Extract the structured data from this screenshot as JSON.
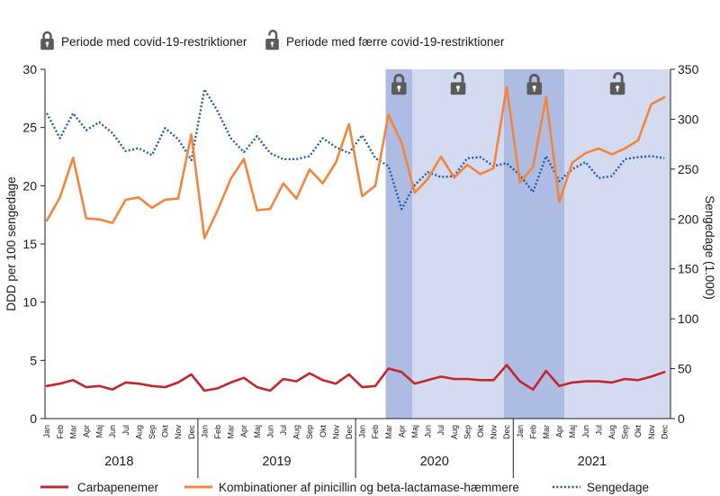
{
  "legend_top": {
    "restricted": {
      "icon": "closed-lock-icon",
      "label": "Periode med covid-19-restriktioner"
    },
    "reduced": {
      "icon": "open-lock-icon",
      "label": "Periode med færre covid-19-restriktioner"
    }
  },
  "colors": {
    "restricted_shade": "#aebbe3",
    "reduced_shade": "#d4dbf1",
    "lock_icon": "#5b5b5b",
    "axis": "#222222"
  },
  "chart_data": {
    "type": "line",
    "ylabel": "DDD per 100 sengedage",
    "ylabel_right": "Sengedage (1.000)",
    "ylim": [
      0,
      30
    ],
    "ylim_right": [
      0,
      350
    ],
    "y_ticks": [
      0,
      5,
      10,
      15,
      20,
      25,
      30
    ],
    "y_ticks_right": [
      0,
      50,
      100,
      150,
      200,
      250,
      300,
      350
    ],
    "years": [
      "2018",
      "2019",
      "2020",
      "2021"
    ],
    "months": [
      "Jan",
      "Feb",
      "Mar",
      "Apr",
      "Maj",
      "Jun",
      "Jul",
      "Aug",
      "Sep",
      "Okt",
      "Nov",
      "Dec"
    ],
    "grid": false,
    "legend": "bottom",
    "series": [
      {
        "name": "Carbapenemer",
        "axis": "left",
        "style": "solid",
        "color": "#c4262e",
        "values": [
          2.8,
          3.0,
          3.3,
          2.7,
          2.8,
          2.5,
          3.1,
          3.0,
          2.8,
          2.7,
          3.1,
          3.8,
          2.4,
          2.6,
          3.1,
          3.5,
          2.7,
          2.4,
          3.4,
          3.2,
          3.9,
          3.3,
          3.0,
          3.8,
          2.7,
          2.8,
          4.3,
          4.0,
          3.0,
          3.3,
          3.6,
          3.4,
          3.4,
          3.3,
          3.3,
          4.6,
          3.2,
          2.5,
          4.1,
          2.8,
          3.1,
          3.2,
          3.2,
          3.1,
          3.4,
          3.3,
          3.6,
          4.0
        ]
      },
      {
        "name": "Kombinationer af pinicillin og beta-lactamase-hæmmere",
        "axis": "left",
        "style": "solid",
        "color": "#f3853d",
        "values": [
          17.0,
          19.0,
          22.4,
          17.2,
          17.1,
          16.8,
          18.8,
          19.0,
          18.1,
          18.8,
          18.9,
          24.4,
          15.5,
          17.9,
          20.6,
          22.3,
          17.9,
          18.0,
          20.2,
          18.9,
          21.4,
          20.2,
          22.0,
          25.3,
          19.1,
          20.0,
          26.1,
          23.7,
          19.4,
          20.6,
          22.5,
          20.7,
          21.8,
          21.0,
          21.5,
          28.5,
          20.3,
          21.6,
          27.6,
          18.6,
          22.0,
          22.8,
          23.2,
          22.7,
          23.2,
          23.9,
          27.0,
          27.6
        ]
      },
      {
        "name": "Sengedage",
        "axis": "right",
        "style": "dotted",
        "color": "#1b5fab",
        "values": [
          306,
          281,
          306,
          289,
          297,
          286,
          268,
          271,
          264,
          291,
          280,
          259,
          330,
          308,
          281,
          267,
          283,
          266,
          260,
          260,
          263,
          281,
          272,
          266,
          284,
          261,
          253,
          210,
          234,
          247,
          242,
          243,
          261,
          262,
          253,
          256,
          244,
          227,
          263,
          238,
          250,
          257,
          241,
          243,
          260,
          262,
          263,
          261
        ]
      }
    ],
    "periods": [
      {
        "type": "restricted",
        "start": 25.8,
        "end": 27.8
      },
      {
        "type": "reduced",
        "start": 27.8,
        "end": 34.8
      },
      {
        "type": "restricted",
        "start": 34.8,
        "end": 39.4
      },
      {
        "type": "reduced",
        "start": 39.4,
        "end": 47.5
      }
    ]
  }
}
